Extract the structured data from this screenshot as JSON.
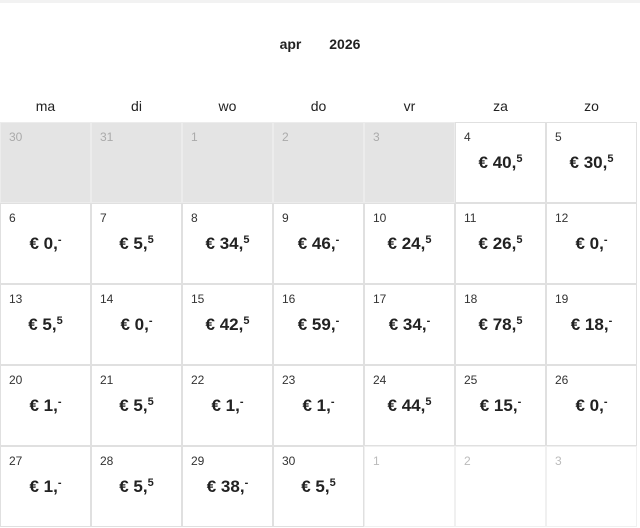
{
  "header": {
    "month": "apr",
    "year": "2026"
  },
  "weekdays": [
    "ma",
    "di",
    "wo",
    "do",
    "vr",
    "za",
    "zo"
  ],
  "days": [
    {
      "day": "30",
      "state": "past"
    },
    {
      "day": "31",
      "state": "past"
    },
    {
      "day": "1",
      "state": "past"
    },
    {
      "day": "2",
      "state": "past"
    },
    {
      "day": "3",
      "state": "past"
    },
    {
      "day": "4",
      "price": "€ 40,",
      "cents": "5"
    },
    {
      "day": "5",
      "price": "€ 30,",
      "cents": "5"
    },
    {
      "day": "6",
      "price": "€ 0,",
      "cents": "-"
    },
    {
      "day": "7",
      "price": "€ 5,",
      "cents": "5"
    },
    {
      "day": "8",
      "price": "€ 34,",
      "cents": "5"
    },
    {
      "day": "9",
      "price": "€ 46,",
      "cents": "-"
    },
    {
      "day": "10",
      "price": "€ 24,",
      "cents": "5"
    },
    {
      "day": "11",
      "price": "€ 26,",
      "cents": "5"
    },
    {
      "day": "12",
      "price": "€ 0,",
      "cents": "-"
    },
    {
      "day": "13",
      "price": "€ 5,",
      "cents": "5"
    },
    {
      "day": "14",
      "price": "€ 0,",
      "cents": "-"
    },
    {
      "day": "15",
      "price": "€ 42,",
      "cents": "5"
    },
    {
      "day": "16",
      "price": "€ 59,",
      "cents": "-"
    },
    {
      "day": "17",
      "price": "€ 34,",
      "cents": "-"
    },
    {
      "day": "18",
      "price": "€ 78,",
      "cents": "5"
    },
    {
      "day": "19",
      "price": "€ 18,",
      "cents": "-"
    },
    {
      "day": "20",
      "price": "€ 1,",
      "cents": "-"
    },
    {
      "day": "21",
      "price": "€ 5,",
      "cents": "5"
    },
    {
      "day": "22",
      "price": "€ 1,",
      "cents": "-"
    },
    {
      "day": "23",
      "price": "€ 1,",
      "cents": "-"
    },
    {
      "day": "24",
      "price": "€ 44,",
      "cents": "5"
    },
    {
      "day": "25",
      "price": "€ 15,",
      "cents": "-"
    },
    {
      "day": "26",
      "price": "€ 0,",
      "cents": "-"
    },
    {
      "day": "27",
      "price": "€ 1,",
      "cents": "-"
    },
    {
      "day": "28",
      "price": "€ 5,",
      "cents": "5"
    },
    {
      "day": "29",
      "price": "€ 38,",
      "cents": "-"
    },
    {
      "day": "30",
      "price": "€ 5,",
      "cents": "5"
    },
    {
      "day": "1",
      "state": "next"
    },
    {
      "day": "2",
      "state": "next"
    },
    {
      "day": "3",
      "state": "next"
    }
  ]
}
